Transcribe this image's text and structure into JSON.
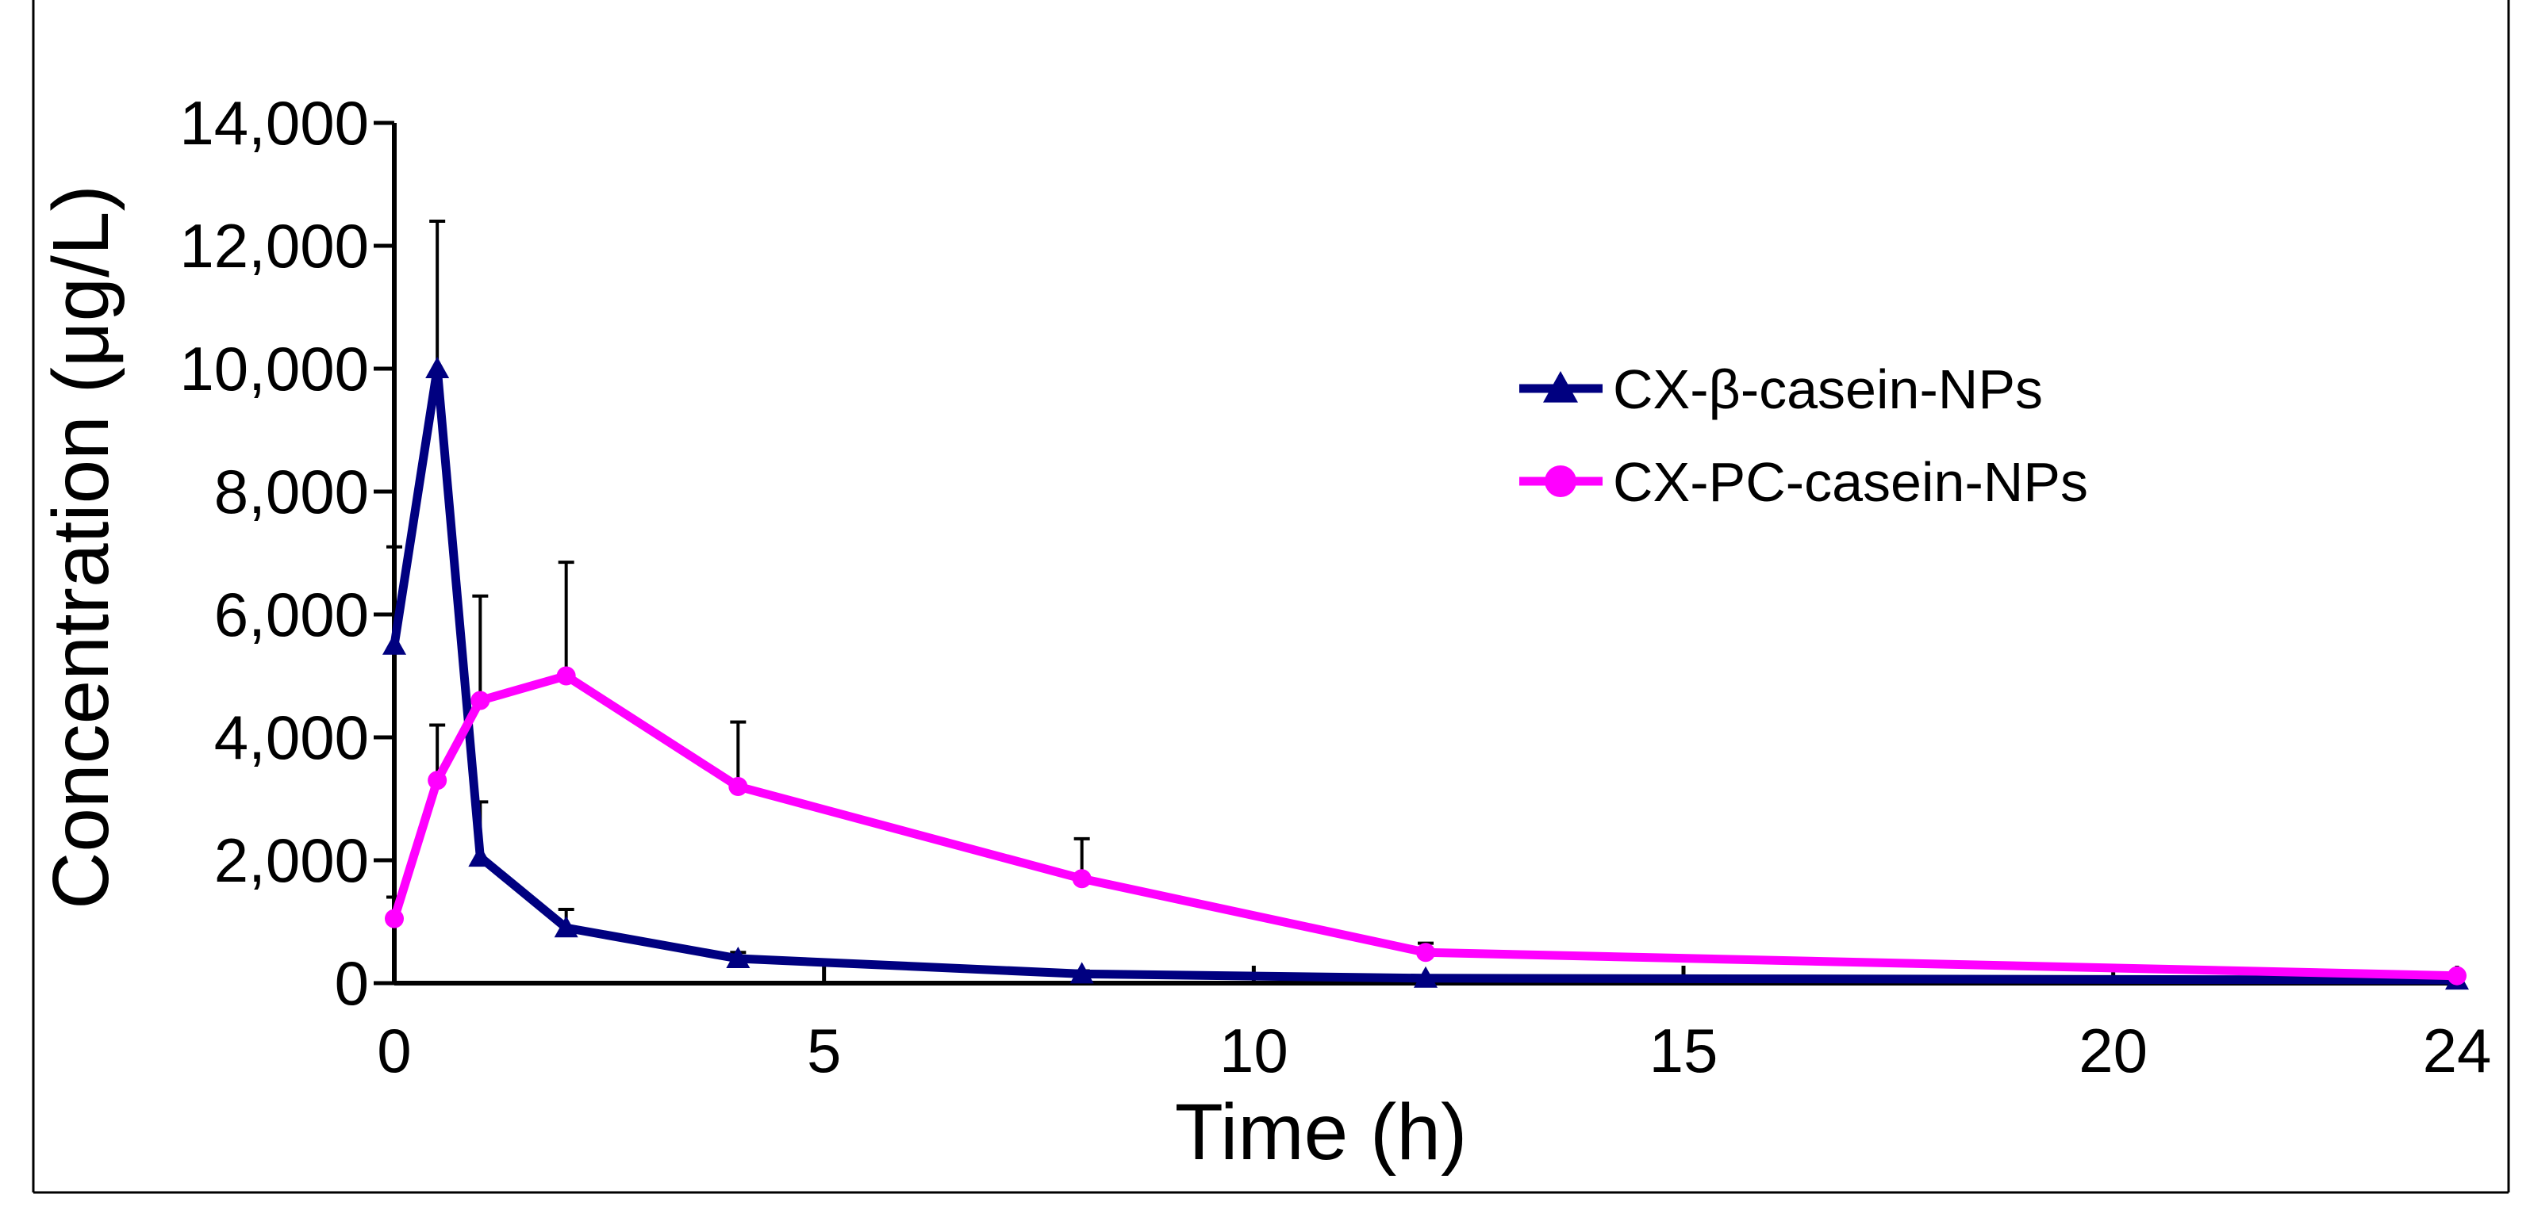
{
  "chart_data": {
    "type": "line",
    "title": "",
    "xlabel": "Time (h)",
    "ylabel": "Concentration (μg/L)",
    "xlim": [
      0,
      24
    ],
    "ylim": [
      0,
      14000
    ],
    "xticks": [
      0,
      5,
      10,
      15,
      20,
      24
    ],
    "xtick_labels": [
      "0",
      "5",
      "10",
      "15",
      "20",
      "24"
    ],
    "yticks": [
      0,
      2000,
      4000,
      6000,
      8000,
      10000,
      12000,
      14000
    ],
    "ytick_labels": [
      "0",
      "2,000",
      "4,000",
      "6,000",
      "8,000",
      "10,000",
      "12,000",
      "14,000"
    ],
    "grid": false,
    "legend_position": "top-right",
    "series": [
      {
        "name": "CX-β-casein-NPs",
        "marker": "triangle",
        "color": "#000080",
        "x": [
          0,
          0.5,
          1,
          2,
          4,
          8,
          12,
          24
        ],
        "y": [
          5500,
          10000,
          2050,
          900,
          400,
          150,
          80,
          50
        ],
        "err": [
          1600,
          2400,
          900,
          300,
          100,
          50,
          0,
          0
        ]
      },
      {
        "name": "CX-PC-casein-NPs",
        "marker": "circle",
        "color": "#FF00FF",
        "x": [
          0,
          0.5,
          1,
          2,
          4,
          8,
          12,
          24
        ],
        "y": [
          1050,
          3300,
          4600,
          5000,
          3200,
          1700,
          500,
          120
        ],
        "err": [
          350,
          900,
          1700,
          1850,
          1050,
          650,
          150,
          0
        ]
      }
    ]
  }
}
